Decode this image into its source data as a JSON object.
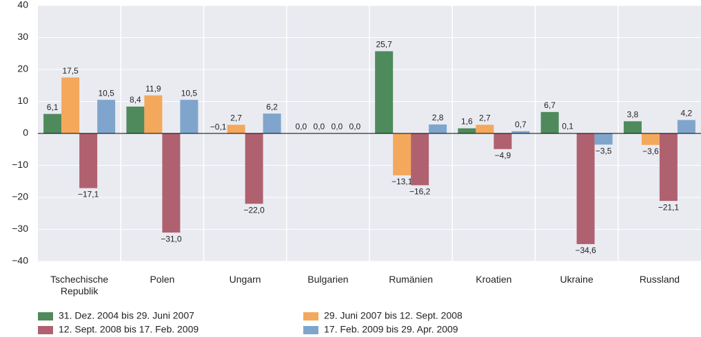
{
  "chart_data": {
    "type": "bar",
    "categories": [
      "Tschechische Republik",
      "Polen",
      "Ungarn",
      "Bulgarien",
      "Rumänien",
      "Kroatien",
      "Ukraine",
      "Russland"
    ],
    "series": [
      {
        "name": "31. Dez. 2004 bis 29. Juni 2007",
        "color": "#4e8a5c",
        "values": [
          6.1,
          8.4,
          -0.1,
          0.0,
          25.7,
          1.6,
          6.7,
          3.8
        ],
        "value_labels": [
          "6,1",
          "8,4",
          "−0,1",
          "0,0",
          "25,7",
          "1,6",
          "6,7",
          "3,8"
        ]
      },
      {
        "name": "29. Juni 2007 bis 12. Sept. 2008",
        "color": "#f4a85c",
        "values": [
          17.5,
          11.9,
          2.7,
          0.0,
          -13.1,
          2.7,
          0.1,
          -3.6
        ],
        "value_labels": [
          "17,5",
          "11,9",
          "2,7",
          "0,0",
          "−13,1",
          "2,7",
          "0,1",
          "−3,6"
        ]
      },
      {
        "name": "12. Sept. 2008 bis 17. Feb. 2009",
        "color": "#b0616f",
        "values": [
          -17.1,
          -31.0,
          -22.0,
          0.0,
          -16.2,
          -4.9,
          -34.6,
          -21.1
        ],
        "value_labels": [
          "−17,1",
          "−31,0",
          "−22,0",
          "0,0",
          "−16,2",
          "−4,9",
          "−34,6",
          "−21,1"
        ]
      },
      {
        "name": "17. Feb. 2009 bis 29. Apr. 2009",
        "color": "#7fa5cc",
        "values": [
          10.5,
          10.5,
          6.2,
          0.0,
          2.8,
          0.7,
          -3.5,
          4.2
        ],
        "value_labels": [
          "10,5",
          "10,5",
          "6,2",
          "0,0",
          "2,8",
          "0,7",
          "−3,5",
          "4,2"
        ]
      }
    ],
    "ylim": [
      -40,
      40
    ],
    "yticks": [
      {
        "value": -40,
        "label": "−40"
      },
      {
        "value": -30,
        "label": "−30"
      },
      {
        "value": -20,
        "label": "−20"
      },
      {
        "value": -10,
        "label": "−10"
      },
      0,
      10,
      20,
      30,
      40
    ],
    "grid": true
  }
}
